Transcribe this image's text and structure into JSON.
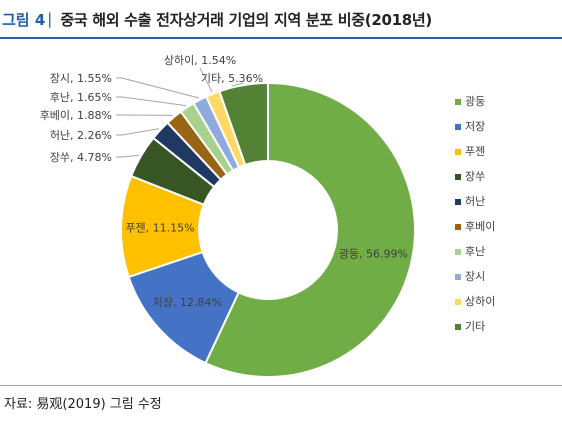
{
  "header": {
    "figure_label": "그림 4",
    "separator": "|",
    "title": "중국 해외 수출 전자상거래 기업의 지역 분포 비중(2018년)"
  },
  "footer": {
    "source": "자료: 易观(2019) 그림 수정"
  },
  "chart_data": {
    "type": "pie",
    "donut": true,
    "title": "",
    "slices": [
      {
        "name": "광둥",
        "label": "광둥, 56.99%",
        "value": 56.99,
        "color": "#70ad47"
      },
      {
        "name": "저장",
        "label": "저장, 12.84%",
        "value": 12.84,
        "color": "#4472c4"
      },
      {
        "name": "푸젠",
        "label": "푸젠, 11.15%",
        "value": 11.15,
        "color": "#ffc000"
      },
      {
        "name": "장쑤",
        "label": "장쑤, 4.78%",
        "value": 4.78,
        "color": "#375623"
      },
      {
        "name": "허난",
        "label": "허난, 2.26%",
        "value": 2.26,
        "color": "#203864"
      },
      {
        "name": "후베이",
        "label": "후베이, 1.88%",
        "value": 1.88,
        "color": "#996515"
      },
      {
        "name": "후난",
        "label": "후난, 1.65%",
        "value": 1.65,
        "color": "#a9d18e"
      },
      {
        "name": "장시",
        "label": "장시, 1.55%",
        "value": 1.55,
        "color": "#8faadc"
      },
      {
        "name": "상하이",
        "label": "상하이, 1.54%",
        "value": 1.54,
        "color": "#ffd966"
      },
      {
        "name": "기타",
        "label": "기타, 5.36%",
        "value": 5.36,
        "color": "#548235"
      }
    ],
    "legend_position": "right"
  }
}
